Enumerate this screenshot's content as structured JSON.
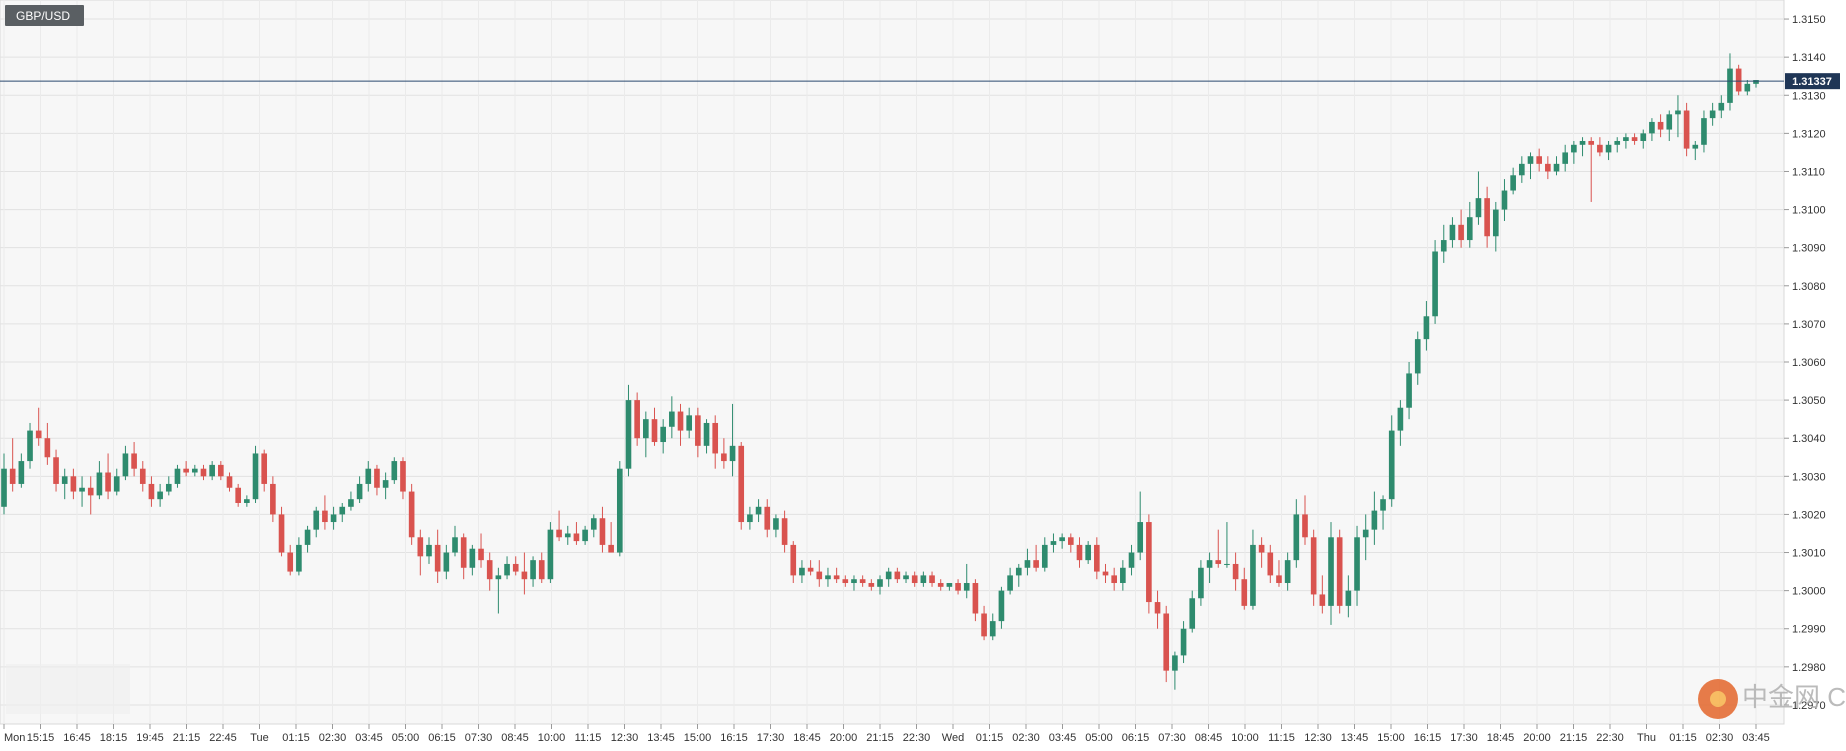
{
  "chart_data": {
    "type": "candlestick",
    "title": "GBP/USD",
    "current_price_label": "1.31337",
    "current_price": 1.31337,
    "ylim": [
      1.2965,
      1.3155
    ],
    "y_ticks": [
      "1.3150",
      "1.3140",
      "1.3130",
      "1.3120",
      "1.3110",
      "1.3100",
      "1.3090",
      "1.3080",
      "1.3070",
      "1.3060",
      "1.3050",
      "1.3040",
      "1.3030",
      "1.3020",
      "1.3010",
      "1.3000",
      "1.2990",
      "1.2980",
      "1.2970"
    ],
    "x_labels": [
      "Mon",
      "15:15",
      "16:45",
      "18:15",
      "19:45",
      "21:15",
      "22:45",
      "Tue",
      "01:15",
      "02:30",
      "03:45",
      "05:00",
      "06:15",
      "07:30",
      "08:45",
      "10:00",
      "11:15",
      "12:30",
      "13:45",
      "15:00",
      "16:15",
      "17:30",
      "18:45",
      "20:00",
      "21:15",
      "22:30",
      "Wed",
      "01:15",
      "02:30",
      "03:45",
      "05:00",
      "06:15",
      "07:30",
      "08:45",
      "10:00",
      "11:15",
      "12:30",
      "13:45",
      "15:00",
      "16:15",
      "17:30",
      "18:45",
      "20:00",
      "21:15",
      "22:30",
      "Thu",
      "01:15",
      "02:30",
      "03:45"
    ],
    "up_color": "#2e8b6e",
    "down_color": "#d9534f",
    "grid": true,
    "watermark": "中金网 CNGOLD.COM.CN",
    "candles": [
      [
        1.3022,
        1.3036,
        1.302,
        1.3032
      ],
      [
        1.3032,
        1.304,
        1.3026,
        1.3028
      ],
      [
        1.3028,
        1.3036,
        1.3027,
        1.3034
      ],
      [
        1.3034,
        1.3044,
        1.3032,
        1.3042
      ],
      [
        1.3042,
        1.3048,
        1.3038,
        1.304
      ],
      [
        1.304,
        1.3044,
        1.3033,
        1.3035
      ],
      [
        1.3035,
        1.3037,
        1.3026,
        1.3028
      ],
      [
        1.3028,
        1.3032,
        1.3024,
        1.303
      ],
      [
        1.303,
        1.3032,
        1.3024,
        1.3026
      ],
      [
        1.3026,
        1.303,
        1.3022,
        1.3027
      ],
      [
        1.3027,
        1.303,
        1.302,
        1.3025
      ],
      [
        1.3025,
        1.3034,
        1.3024,
        1.3031
      ],
      [
        1.3031,
        1.3036,
        1.3024,
        1.3026
      ],
      [
        1.3026,
        1.3032,
        1.3025,
        1.303
      ],
      [
        1.303,
        1.3038,
        1.3029,
        1.3036
      ],
      [
        1.3036,
        1.3039,
        1.303,
        1.3032
      ],
      [
        1.3032,
        1.3034,
        1.3026,
        1.3028
      ],
      [
        1.3028,
        1.303,
        1.3022,
        1.3024
      ],
      [
        1.3024,
        1.3028,
        1.3022,
        1.3026
      ],
      [
        1.3026,
        1.303,
        1.3025,
        1.3028
      ],
      [
        1.3028,
        1.3033,
        1.3027,
        1.3032
      ],
      [
        1.3032,
        1.3034,
        1.303,
        1.3031
      ],
      [
        1.3031,
        1.3033,
        1.303,
        1.3032
      ],
      [
        1.3032,
        1.3033,
        1.3029,
        1.303
      ],
      [
        1.303,
        1.3034,
        1.3029,
        1.3033
      ],
      [
        1.3033,
        1.3034,
        1.3029,
        1.303
      ],
      [
        1.303,
        1.3031,
        1.3026,
        1.3027
      ],
      [
        1.3027,
        1.3028,
        1.3022,
        1.3023
      ],
      [
        1.3023,
        1.3025,
        1.3022,
        1.3024
      ],
      [
        1.3024,
        1.3038,
        1.3023,
        1.3036
      ],
      [
        1.3036,
        1.3037,
        1.3026,
        1.3028
      ],
      [
        1.3028,
        1.303,
        1.3018,
        1.302
      ],
      [
        1.302,
        1.3022,
        1.3009,
        1.301
      ],
      [
        1.301,
        1.3012,
        1.3004,
        1.3005
      ],
      [
        1.3005,
        1.3014,
        1.3004,
        1.3012
      ],
      [
        1.3012,
        1.3017,
        1.301,
        1.3016
      ],
      [
        1.3016,
        1.3022,
        1.3014,
        1.3021
      ],
      [
        1.3021,
        1.3025,
        1.3016,
        1.3018
      ],
      [
        1.3018,
        1.3022,
        1.3016,
        1.302
      ],
      [
        1.302,
        1.3023,
        1.3018,
        1.3022
      ],
      [
        1.3022,
        1.3026,
        1.3021,
        1.3024
      ],
      [
        1.3024,
        1.303,
        1.3023,
        1.3028
      ],
      [
        1.3028,
        1.3034,
        1.3026,
        1.3032
      ],
      [
        1.3032,
        1.3033,
        1.3025,
        1.3027
      ],
      [
        1.3027,
        1.3031,
        1.3024,
        1.3029
      ],
      [
        1.3029,
        1.3035,
        1.3028,
        1.3034
      ],
      [
        1.3034,
        1.3035,
        1.3024,
        1.3026
      ],
      [
        1.3026,
        1.3028,
        1.3012,
        1.3014
      ],
      [
        1.3014,
        1.3016,
        1.3004,
        1.3009
      ],
      [
        1.3009,
        1.3014,
        1.3007,
        1.3012
      ],
      [
        1.3012,
        1.3016,
        1.3002,
        1.3005
      ],
      [
        1.3005,
        1.3012,
        1.3003,
        1.301
      ],
      [
        1.301,
        1.3017,
        1.3009,
        1.3014
      ],
      [
        1.3014,
        1.3015,
        1.3003,
        1.3006
      ],
      [
        1.3006,
        1.3012,
        1.3004,
        1.3011
      ],
      [
        1.3011,
        1.3015,
        1.3006,
        1.3008
      ],
      [
        1.3008,
        1.301,
        1.3,
        1.3003
      ],
      [
        1.3003,
        1.3006,
        1.2994,
        1.3004
      ],
      [
        1.3004,
        1.3009,
        1.3003,
        1.3007
      ],
      [
        1.3007,
        1.3009,
        1.3004,
        1.3005
      ],
      [
        1.3005,
        1.301,
        1.2999,
        1.3003
      ],
      [
        1.3003,
        1.3009,
        1.3001,
        1.3008
      ],
      [
        1.3008,
        1.301,
        1.3002,
        1.3003
      ],
      [
        1.3003,
        1.3018,
        1.3002,
        1.3016
      ],
      [
        1.3016,
        1.3021,
        1.3013,
        1.3014
      ],
      [
        1.3014,
        1.3017,
        1.3012,
        1.3015
      ],
      [
        1.3015,
        1.3018,
        1.3012,
        1.3013
      ],
      [
        1.3013,
        1.3017,
        1.3012,
        1.3016
      ],
      [
        1.3016,
        1.302,
        1.3014,
        1.3019
      ],
      [
        1.3019,
        1.3022,
        1.301,
        1.3012
      ],
      [
        1.3012,
        1.3018,
        1.301,
        1.301
      ],
      [
        1.301,
        1.3034,
        1.3009,
        1.3032
      ],
      [
        1.3032,
        1.3054,
        1.303,
        1.305
      ],
      [
        1.305,
        1.3052,
        1.3038,
        1.304
      ],
      [
        1.304,
        1.3047,
        1.3035,
        1.3045
      ],
      [
        1.3045,
        1.3048,
        1.3038,
        1.3039
      ],
      [
        1.3039,
        1.3045,
        1.3036,
        1.3043
      ],
      [
        1.3043,
        1.3051,
        1.304,
        1.3047
      ],
      [
        1.3047,
        1.3049,
        1.3038,
        1.3042
      ],
      [
        1.3042,
        1.3048,
        1.304,
        1.3046
      ],
      [
        1.3046,
        1.3048,
        1.3035,
        1.3038
      ],
      [
        1.3038,
        1.3045,
        1.3036,
        1.3044
      ],
      [
        1.3044,
        1.3046,
        1.3032,
        1.3036
      ],
      [
        1.3036,
        1.304,
        1.3032,
        1.3034
      ],
      [
        1.3034,
        1.3049,
        1.303,
        1.3038
      ],
      [
        1.3038,
        1.3039,
        1.3016,
        1.3018
      ],
      [
        1.3018,
        1.3022,
        1.3016,
        1.302
      ],
      [
        1.302,
        1.3024,
        1.3018,
        1.3022
      ],
      [
        1.3022,
        1.3024,
        1.3014,
        1.3016
      ],
      [
        1.3016,
        1.302,
        1.3014,
        1.3019
      ],
      [
        1.3019,
        1.3021,
        1.301,
        1.3012
      ],
      [
        1.3012,
        1.3013,
        1.3002,
        1.3004
      ],
      [
        1.3004,
        1.3008,
        1.3002,
        1.3006
      ],
      [
        1.3006,
        1.3008,
        1.3004,
        1.3005
      ],
      [
        1.3005,
        1.3008,
        1.3001,
        1.3003
      ],
      [
        1.3003,
        1.3006,
        1.3001,
        1.3004
      ],
      [
        1.3004,
        1.3006,
        1.3002,
        1.3003
      ],
      [
        1.3003,
        1.3004,
        1.3001,
        1.3002
      ],
      [
        1.3002,
        1.3004,
        1.3,
        1.3003
      ],
      [
        1.3003,
        1.3004,
        1.3001,
        1.3002
      ],
      [
        1.3002,
        1.3003,
        1.3,
        1.3001
      ],
      [
        1.3001,
        1.3004,
        1.2999,
        1.3003
      ],
      [
        1.3003,
        1.3006,
        1.3001,
        1.3005
      ],
      [
        1.3005,
        1.3006,
        1.3002,
        1.3003
      ],
      [
        1.3003,
        1.3005,
        1.3002,
        1.3004
      ],
      [
        1.3004,
        1.3005,
        1.3001,
        1.3002
      ],
      [
        1.3002,
        1.3005,
        1.3001,
        1.3004
      ],
      [
        1.3004,
        1.3005,
        1.3001,
        1.3002
      ],
      [
        1.3002,
        1.3003,
        1.3,
        1.3001
      ],
      [
        1.3001,
        1.3002,
        1.3,
        1.3002
      ],
      [
        1.3002,
        1.3003,
        1.2999,
        1.3
      ],
      [
        1.3,
        1.3007,
        1.2998,
        1.3002
      ],
      [
        1.3002,
        1.3003,
        1.2992,
        1.2994
      ],
      [
        1.2994,
        1.2996,
        1.2987,
        1.2988
      ],
      [
        1.2988,
        1.2994,
        1.2987,
        1.2992
      ],
      [
        1.2992,
        1.3001,
        1.299,
        1.3
      ],
      [
        1.3,
        1.3006,
        1.2999,
        1.3004
      ],
      [
        1.3004,
        1.3007,
        1.3001,
        1.3006
      ],
      [
        1.3006,
        1.3011,
        1.3004,
        1.3008
      ],
      [
        1.3008,
        1.3012,
        1.3005,
        1.3006
      ],
      [
        1.3006,
        1.3014,
        1.3005,
        1.3012
      ],
      [
        1.3012,
        1.3015,
        1.301,
        1.3013
      ],
      [
        1.3013,
        1.3015,
        1.3011,
        1.3014
      ],
      [
        1.3014,
        1.3015,
        1.301,
        1.3012
      ],
      [
        1.3012,
        1.3014,
        1.3006,
        1.3008
      ],
      [
        1.3008,
        1.3013,
        1.3007,
        1.3012
      ],
      [
        1.3012,
        1.3014,
        1.3003,
        1.3005
      ],
      [
        1.3005,
        1.3007,
        1.3002,
        1.3004
      ],
      [
        1.3004,
        1.3006,
        1.3,
        1.3002
      ],
      [
        1.3002,
        1.3008,
        1.3,
        1.3006
      ],
      [
        1.3006,
        1.3012,
        1.3004,
        1.301
      ],
      [
        1.301,
        1.3026,
        1.3008,
        1.3018
      ],
      [
        1.3018,
        1.302,
        1.2994,
        1.2997
      ],
      [
        1.2997,
        1.3,
        1.299,
        1.2994
      ],
      [
        1.2994,
        1.2996,
        1.2976,
        1.2979
      ],
      [
        1.2979,
        1.2984,
        1.2974,
        1.2983
      ],
      [
        1.2983,
        1.2992,
        1.2981,
        1.299
      ],
      [
        1.299,
        1.3,
        1.2989,
        1.2998
      ],
      [
        1.2998,
        1.3008,
        1.2996,
        1.3006
      ],
      [
        1.3006,
        1.301,
        1.3002,
        1.3008
      ],
      [
        1.3008,
        1.3016,
        1.3006,
        1.3007
      ],
      [
        1.3007,
        1.3018,
        1.3006,
        1.3007
      ],
      [
        1.3007,
        1.301,
        1.3,
        1.3003
      ],
      [
        1.3003,
        1.3006,
        1.2995,
        1.2996
      ],
      [
        1.2996,
        1.3016,
        1.2995,
        1.3012
      ],
      [
        1.3012,
        1.3014,
        1.3006,
        1.301
      ],
      [
        1.301,
        1.3012,
        1.3002,
        1.3004
      ],
      [
        1.3004,
        1.3008,
        1.3001,
        1.3002
      ],
      [
        1.3002,
        1.301,
        1.3,
        1.3008
      ],
      [
        1.3008,
        1.3024,
        1.3006,
        1.302
      ],
      [
        1.302,
        1.3025,
        1.3012,
        1.3014
      ],
      [
        1.3014,
        1.3016,
        1.2996,
        1.2999
      ],
      [
        1.2999,
        1.3004,
        1.2994,
        1.2996
      ],
      [
        1.2996,
        1.3018,
        1.2991,
        1.3014
      ],
      [
        1.3014,
        1.3016,
        1.2994,
        1.2996
      ],
      [
        1.2996,
        1.3004,
        1.2993,
        1.3
      ],
      [
        1.3,
        1.3017,
        1.2996,
        1.3014
      ],
      [
        1.3014,
        1.302,
        1.3008,
        1.3016
      ],
      [
        1.3016,
        1.3026,
        1.3012,
        1.3021
      ],
      [
        1.3021,
        1.3025,
        1.3016,
        1.3024
      ],
      [
        1.3024,
        1.3046,
        1.3022,
        1.3042
      ],
      [
        1.3042,
        1.305,
        1.3038,
        1.3048
      ],
      [
        1.3048,
        1.306,
        1.3045,
        1.3057
      ],
      [
        1.3057,
        1.3068,
        1.3054,
        1.3066
      ],
      [
        1.3066,
        1.3076,
        1.3063,
        1.3072
      ],
      [
        1.3072,
        1.3092,
        1.307,
        1.3089
      ],
      [
        1.3089,
        1.3096,
        1.3086,
        1.3092
      ],
      [
        1.3092,
        1.3098,
        1.309,
        1.3096
      ],
      [
        1.3096,
        1.31,
        1.309,
        1.3092
      ],
      [
        1.3092,
        1.3102,
        1.309,
        1.3098
      ],
      [
        1.3098,
        1.311,
        1.3096,
        1.3103
      ],
      [
        1.3103,
        1.3106,
        1.309,
        1.3093
      ],
      [
        1.3093,
        1.3102,
        1.3089,
        1.31
      ],
      [
        1.31,
        1.3108,
        1.3097,
        1.3105
      ],
      [
        1.3105,
        1.3111,
        1.3104,
        1.3109
      ],
      [
        1.3109,
        1.3114,
        1.3107,
        1.3112
      ],
      [
        1.3112,
        1.3115,
        1.3108,
        1.3114
      ],
      [
        1.3114,
        1.3116,
        1.311,
        1.3112
      ],
      [
        1.3112,
        1.3114,
        1.3108,
        1.311
      ],
      [
        1.311,
        1.3114,
        1.3109,
        1.3112
      ],
      [
        1.3112,
        1.3117,
        1.311,
        1.3115
      ],
      [
        1.3115,
        1.3118,
        1.3112,
        1.3117
      ],
      [
        1.3117,
        1.3119,
        1.3114,
        1.3118
      ],
      [
        1.3118,
        1.3119,
        1.3102,
        1.3117
      ],
      [
        1.3117,
        1.3119,
        1.3114,
        1.3115
      ],
      [
        1.3115,
        1.3118,
        1.3113,
        1.3117
      ],
      [
        1.3117,
        1.3119,
        1.3115,
        1.3118
      ],
      [
        1.3118,
        1.312,
        1.3116,
        1.3119
      ],
      [
        1.3119,
        1.312,
        1.3117,
        1.3118
      ],
      [
        1.3118,
        1.3121,
        1.3116,
        1.312
      ],
      [
        1.312,
        1.3124,
        1.3118,
        1.3123
      ],
      [
        1.3123,
        1.3125,
        1.3119,
        1.3121
      ],
      [
        1.3121,
        1.3126,
        1.3118,
        1.3125
      ],
      [
        1.3125,
        1.313,
        1.3119,
        1.3126
      ],
      [
        1.3126,
        1.3128,
        1.3114,
        1.3116
      ],
      [
        1.3116,
        1.3118,
        1.3113,
        1.3117
      ],
      [
        1.3117,
        1.3126,
        1.3115,
        1.3124
      ],
      [
        1.3124,
        1.3128,
        1.3122,
        1.3126
      ],
      [
        1.3126,
        1.313,
        1.3124,
        1.3128
      ],
      [
        1.3128,
        1.3141,
        1.3126,
        1.3137
      ],
      [
        1.3137,
        1.3138,
        1.313,
        1.3131
      ],
      [
        1.3131,
        1.3134,
        1.313,
        1.3133
      ],
      [
        1.3133,
        1.3134,
        1.3132,
        1.3134
      ]
    ]
  }
}
